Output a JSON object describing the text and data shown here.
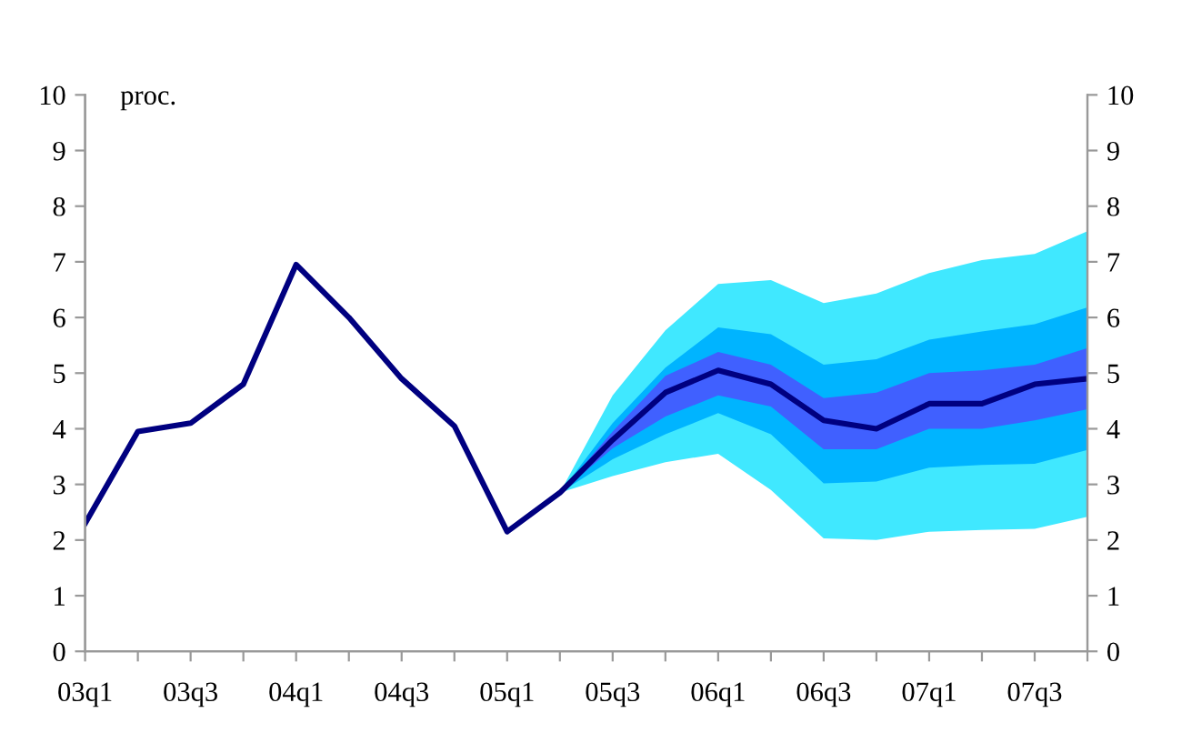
{
  "chart_data": {
    "type": "line",
    "ylabel": "proc.",
    "categories": [
      "03q1",
      null,
      "03q3",
      null,
      "04q1",
      null,
      "04q3",
      null,
      "05q1",
      null,
      "05q3",
      null,
      "06q1",
      null,
      "06q3",
      null,
      "07q1",
      null,
      "07q3",
      null
    ],
    "series": [
      {
        "color": "#40e8ff",
        "values": [
          null,
          null,
          null,
          null,
          null,
          null,
          null,
          null,
          null,
          null,
          null,
          null,
          null,
          null,
          null,
          null,
          null,
          null,
          null,
          null
        ],
        "lower": [
          null,
          null,
          null,
          null,
          null,
          null,
          null,
          null,
          null,
          2.85,
          3.15,
          3.4,
          3.55,
          2.9,
          2.03,
          2.0,
          2.15,
          2.18,
          2.2,
          2.42
        ],
        "upper": [
          null,
          null,
          null,
          null,
          null,
          null,
          null,
          null,
          null,
          2.85,
          4.6,
          5.77,
          6.6,
          6.67,
          6.26,
          6.43,
          6.8,
          7.03,
          7.14,
          7.55
        ]
      },
      {
        "color": "#00b4ff",
        "values": [
          null,
          null,
          null,
          null,
          null,
          null,
          null,
          null,
          null,
          null,
          null,
          null,
          null,
          null,
          null,
          null,
          null,
          null,
          null,
          null
        ],
        "lower": [
          null,
          null,
          null,
          null,
          null,
          null,
          null,
          null,
          null,
          2.85,
          3.45,
          3.9,
          4.28,
          3.9,
          3.02,
          3.05,
          3.3,
          3.35,
          3.37,
          3.62
        ],
        "upper": [
          null,
          null,
          null,
          null,
          null,
          null,
          null,
          null,
          null,
          2.85,
          4.1,
          5.1,
          5.82,
          5.7,
          5.15,
          5.25,
          5.6,
          5.75,
          5.88,
          6.18
        ]
      },
      {
        "color": "#4060ff",
        "values": [
          null,
          null,
          null,
          null,
          null,
          null,
          null,
          null,
          null,
          null,
          null,
          null,
          null,
          null,
          null,
          null,
          null,
          null,
          null,
          null
        ],
        "lower": [
          null,
          null,
          null,
          null,
          null,
          null,
          null,
          null,
          null,
          2.85,
          3.65,
          4.22,
          4.6,
          4.4,
          3.63,
          3.63,
          4.0,
          4.0,
          4.15,
          4.35
        ],
        "upper": [
          null,
          null,
          null,
          null,
          null,
          null,
          null,
          null,
          null,
          2.85,
          3.95,
          4.95,
          5.38,
          5.15,
          4.55,
          4.65,
          5.0,
          5.05,
          5.15,
          5.45
        ]
      },
      {
        "color": "#000080",
        "values": [
          2.3,
          3.95,
          4.1,
          4.8,
          6.95,
          6.0,
          4.9,
          4.05,
          2.15,
          2.85,
          3.8,
          4.65,
          5.05,
          4.8,
          4.15,
          4.0,
          4.45,
          4.45,
          4.8,
          4.9
        ]
      }
    ],
    "ylim": [
      0,
      10
    ],
    "yticks": [
      0,
      1,
      2,
      3,
      4,
      5,
      6,
      7,
      8,
      9,
      10
    ],
    "y2lim": [
      0,
      10
    ],
    "y2ticks": [
      0,
      1,
      2,
      3,
      4,
      5,
      6,
      7,
      8,
      9,
      10
    ],
    "grid": false,
    "legend": false,
    "marker": "none",
    "line_style": "solid"
  }
}
